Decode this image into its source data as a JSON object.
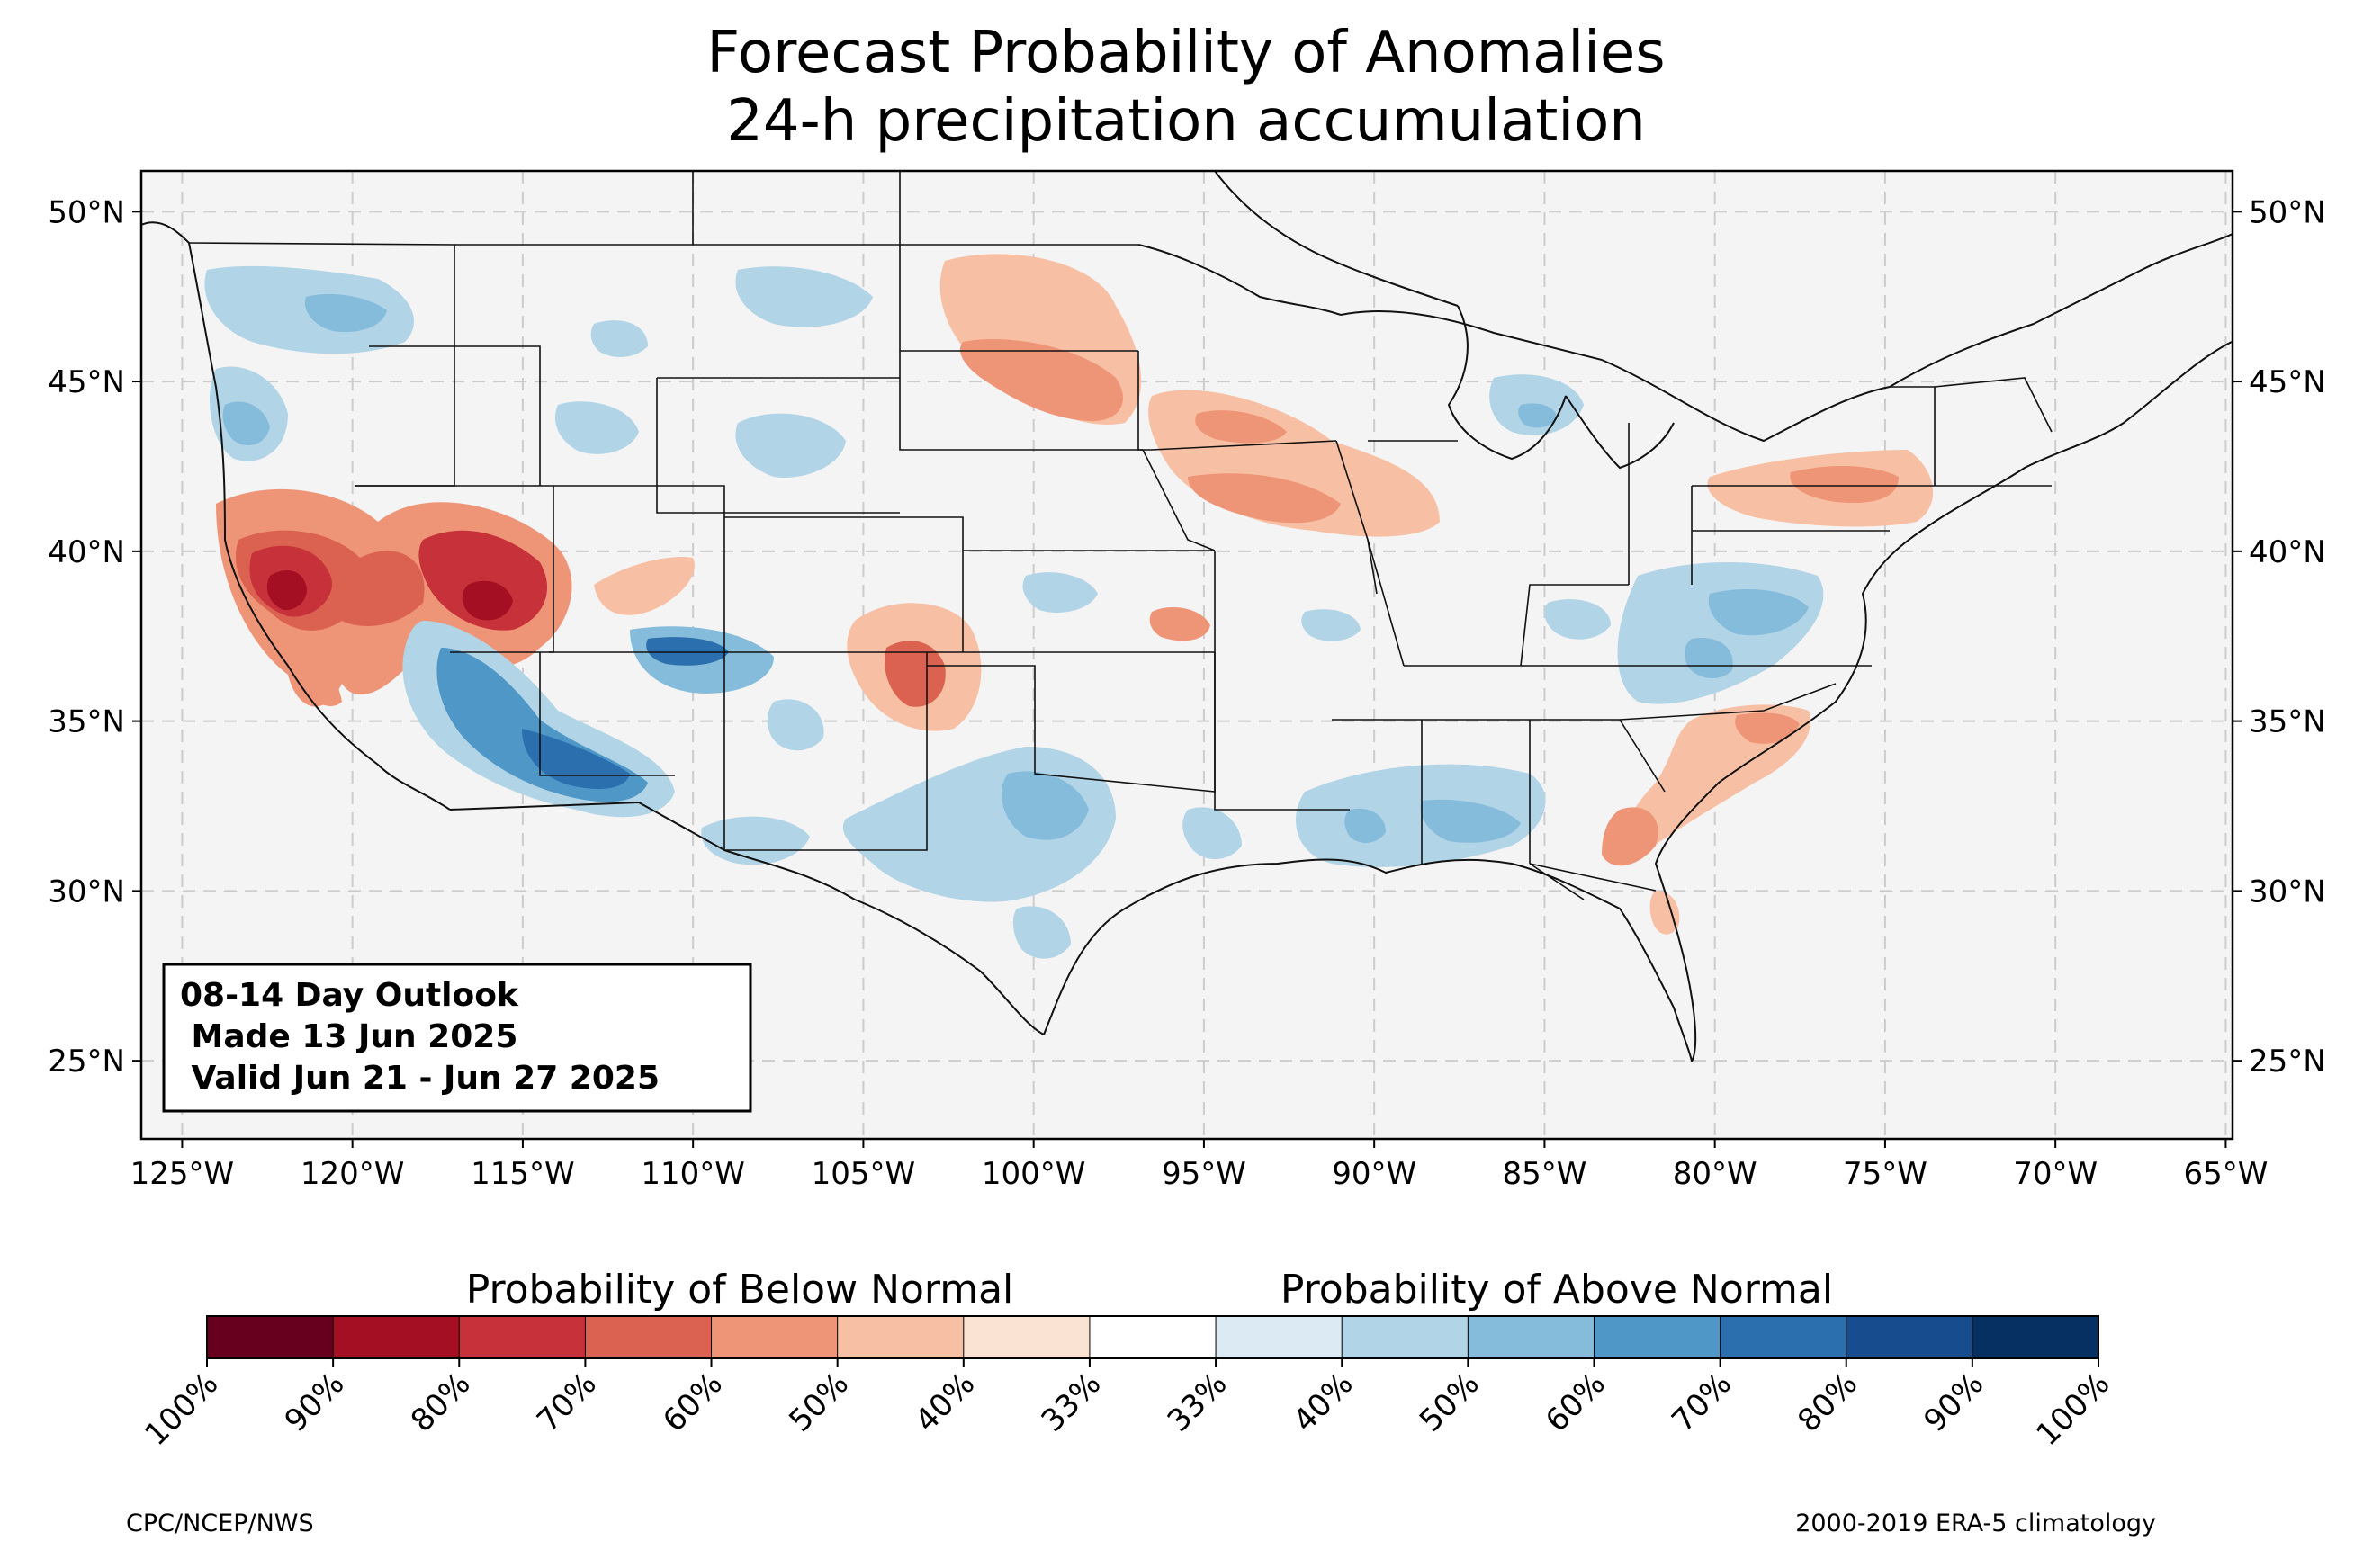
{
  "title": {
    "line1": "Forecast Probability of Anomalies",
    "line2": "24-h precipitation accumulation"
  },
  "map": {
    "lat_ticks": [
      "50°N",
      "45°N",
      "40°N",
      "35°N",
      "30°N",
      "25°N"
    ],
    "lon_ticks": [
      "125°W",
      "120°W",
      "115°W",
      "110°W",
      "105°W",
      "100°W",
      "95°W",
      "90°W",
      "85°W",
      "80°W",
      "75°W",
      "70°W",
      "65°W"
    ],
    "extent": {
      "lon_min": -126.2,
      "lon_max": -64.8,
      "lat_min": 22.7,
      "lat_max": 51.2
    },
    "land_color": "#f4f4f4",
    "grid_lines": "dashed"
  },
  "info_box": {
    "line1": "08-14 Day Outlook",
    "line2": " Made 13 Jun 2025",
    "line3": " Valid Jun 21 - Jun 27 2025"
  },
  "colorbar": {
    "below_label": "Probability of Below Normal",
    "above_label": "Probability of Above Normal",
    "ticks": [
      "100%",
      "90%",
      "80%",
      "70%",
      "60%",
      "50%",
      "40%",
      "33%",
      "33%",
      "40%",
      "50%",
      "60%",
      "70%",
      "80%",
      "90%",
      "100%"
    ],
    "colors": [
      "#67001f",
      "#a50f23",
      "#c7323a",
      "#db6250",
      "#ef9577",
      "#f7c0a4",
      "#fbe3d4",
      "#ffffff",
      "#dcebf3",
      "#b2d4e7",
      "#86bcdb",
      "#4e97c6",
      "#2c6fae",
      "#174d8f",
      "#053061"
    ]
  },
  "credits": {
    "left": "CPC/NCEP/NWS",
    "right": "2000-2019 ERA-5 climatology"
  }
}
